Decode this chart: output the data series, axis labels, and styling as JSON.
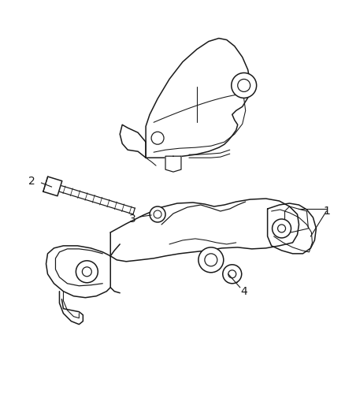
{
  "bg_color": "#ffffff",
  "line_color": "#1a1a1a",
  "lw": 1.1,
  "fig_w": 4.38,
  "fig_h": 5.33,
  "dpi": 100
}
